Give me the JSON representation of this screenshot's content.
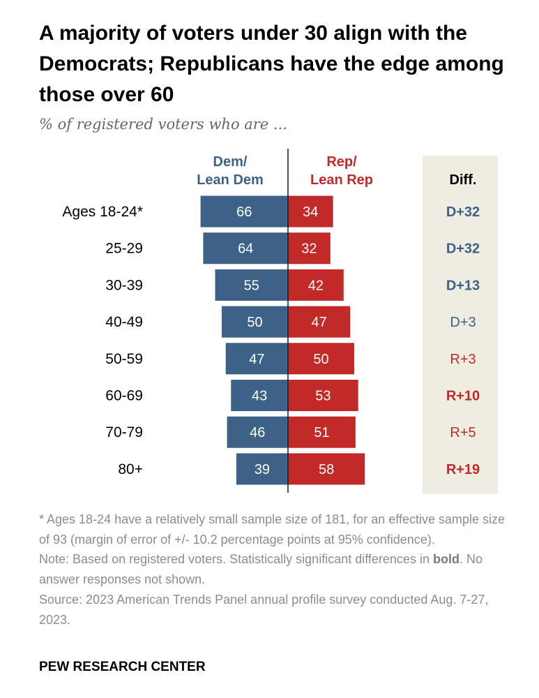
{
  "title": "A majority of voters under 30 align with the Democrats; Republicans have the edge among those over 60",
  "subtitle": "% of registered voters who are ...",
  "colors": {
    "dem": "#3d6187",
    "rep": "#c22a29",
    "diff_bg": "#efede2",
    "text": "#000000",
    "muted": "#8c8c8c"
  },
  "chart_data": {
    "type": "bar",
    "orientation": "horizontal-diverging",
    "title": "A majority of voters under 30 align with the Democrats; Republicans have the edge among those over 60",
    "subtitle": "% of registered voters who are ...",
    "headers": {
      "dem": [
        "Dem/",
        "Lean Dem"
      ],
      "rep": [
        "Rep/",
        "Lean Rep"
      ],
      "diff": "Diff."
    },
    "categories": [
      "Ages 18-24*",
      "25-29",
      "30-39",
      "40-49",
      "50-59",
      "60-69",
      "70-79",
      "80+"
    ],
    "series": [
      {
        "name": "Dem/Lean Dem",
        "values": [
          66,
          64,
          55,
          50,
          47,
          43,
          46,
          39
        ]
      },
      {
        "name": "Rep/Lean Rep",
        "values": [
          34,
          32,
          42,
          47,
          50,
          53,
          51,
          58
        ]
      }
    ],
    "diff": [
      {
        "label": "D+32",
        "party": "dem",
        "significant": true
      },
      {
        "label": "D+32",
        "party": "dem",
        "significant": true
      },
      {
        "label": "D+13",
        "party": "dem",
        "significant": true
      },
      {
        "label": "D+3",
        "party": "dem",
        "significant": false
      },
      {
        "label": "R+3",
        "party": "rep",
        "significant": false
      },
      {
        "label": "R+10",
        "party": "rep",
        "significant": true
      },
      {
        "label": "R+5",
        "party": "rep",
        "significant": false
      },
      {
        "label": "R+19",
        "party": "rep",
        "significant": true
      }
    ]
  },
  "notes": {
    "footnote": "* Ages 18-24 have a relatively small sample size of 181, for an effective sample size of 93 (margin of error of +/- 10.2 percentage points at 95% confidence).",
    "note_prefix": "Note: Based on registered voters. Statistically significant differences in ",
    "note_bold": "bold",
    "note_suffix": ". No answer responses not shown.",
    "source": "Source: 2023 American Trends Panel annual profile survey conducted Aug. 7-27, 2023."
  },
  "brand": "PEW RESEARCH CENTER"
}
